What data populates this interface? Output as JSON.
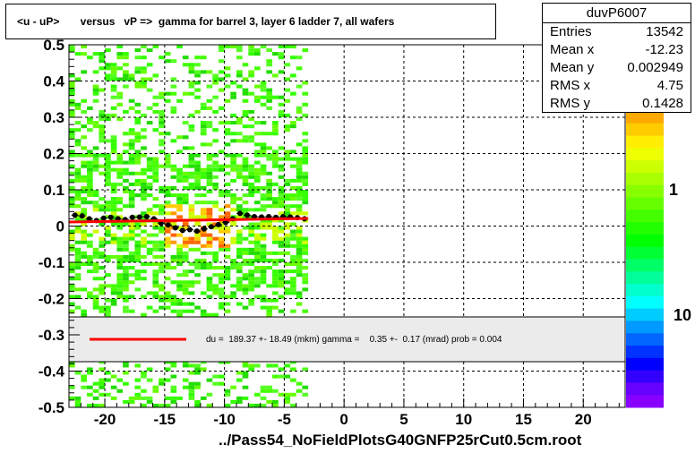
{
  "title": "<u - uP>       versus   vP =>  gamma for barrel 3, layer 6 ladder 7, all wafers",
  "stats": {
    "name": "duvP6007",
    "rows": [
      {
        "label": "Entries",
        "value": "13542"
      },
      {
        "label": "Mean x",
        "value": "-12.23"
      },
      {
        "label": "Mean y",
        "value": "0.002949"
      },
      {
        "label": "RMS x",
        "value": "4.75"
      },
      {
        "label": "RMS y",
        "value": "0.1428"
      }
    ]
  },
  "fit_text": "du =  189.37 +- 18.49 (mkm) gamma =    0.35 +-  0.17 (mrad) prob = 0.004",
  "footer": "../Pass54_NoFieldPlotsG40GNFP25rCut0.5cm.root",
  "colors": {
    "fit_line": "#ff0000",
    "profile_points": "#000000"
  },
  "palette_labels": {
    "mid": "1",
    "low": "10"
  },
  "chart_data": {
    "type": "scatter",
    "xlim": [
      -23,
      23.5
    ],
    "ylim": [
      -0.5,
      0.5
    ],
    "x_ticks": [
      -20,
      -15,
      -10,
      -5,
      0,
      5,
      10,
      15,
      20
    ],
    "y_ticks": [
      -0.5,
      -0.4,
      -0.3,
      -0.2,
      -0.1,
      0,
      0.1,
      0.2,
      0.3,
      0.4,
      0.5
    ],
    "grid": true,
    "profile": {
      "x": [
        -22.5,
        -21.9,
        -21.3,
        -20.7,
        -20.1,
        -19.5,
        -18.9,
        -18.3,
        -17.7,
        -17.1,
        -16.5,
        -15.9,
        -15.3,
        -14.7,
        -14.1,
        -13.5,
        -12.9,
        -12.3,
        -11.7,
        -11.1,
        -10.5,
        -9.9,
        -9.3,
        -8.7,
        -8.1,
        -7.5,
        -6.9,
        -6.3,
        -5.7,
        -5.1,
        -4.5,
        -3.9,
        -3.3
      ],
      "y": [
        0.03,
        0.028,
        0.02,
        0.015,
        0.022,
        0.024,
        0.02,
        0.018,
        0.024,
        0.025,
        0.026,
        0.02,
        0.008,
        0.003,
        -0.005,
        -0.012,
        -0.01,
        -0.014,
        -0.008,
        -0.002,
        0.004,
        0.01,
        0.02,
        0.035,
        0.03,
        0.026,
        0.025,
        0.026,
        0.024,
        0.026,
        0.025,
        0.023,
        0.02
      ]
    },
    "fit": {
      "x": [
        -23,
        -3
      ],
      "y": [
        0.011,
        0.021
      ]
    },
    "density": {
      "x_range": [
        -23,
        -3
      ],
      "y_range": [
        -0.5,
        0.5
      ],
      "dense_region": {
        "x": [
          -15,
          -10
        ],
        "y": [
          -0.06,
          0.06
        ]
      }
    }
  }
}
